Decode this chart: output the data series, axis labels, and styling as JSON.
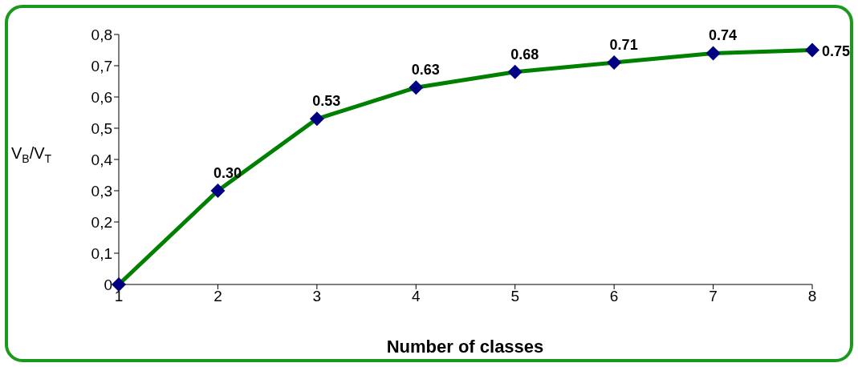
{
  "chart_data": {
    "type": "line",
    "xlabel": "Number of classes",
    "ylabel": "V$_{B}$/V$_{T}$",
    "x": [
      1,
      2,
      3,
      4,
      5,
      6,
      7,
      8
    ],
    "series": [
      {
        "color": "#008000",
        "values": [
          0,
          0.3,
          0.53,
          0.63,
          0.68,
          0.71,
          0.74,
          0.75
        ],
        "value_labels": [
          null,
          "0.30",
          "0.53",
          "0.63",
          "0.68",
          "0.71",
          "0.74",
          "0.75"
        ]
      }
    ],
    "xlim": [
      1,
      8
    ],
    "xticks": [
      1,
      2,
      3,
      4,
      5,
      6,
      7,
      8
    ],
    "ylim": [
      0,
      0.8
    ],
    "yticks": [
      0,
      {
        "value": 0.1,
        "label": "0,1"
      },
      {
        "value": 0.2,
        "label": "0,2"
      },
      {
        "value": 0.3,
        "label": "0,3"
      },
      {
        "value": 0.4,
        "label": "0,4"
      },
      {
        "value": 0.5,
        "label": "0,5"
      },
      {
        "value": 0.6,
        "label": "0,6"
      },
      {
        "value": 0.7,
        "label": "0,7"
      },
      {
        "value": 0.8,
        "label": "0,8"
      }
    ],
    "grid": false,
    "legend": false,
    "marker": "diamond",
    "line_style": "solid"
  }
}
